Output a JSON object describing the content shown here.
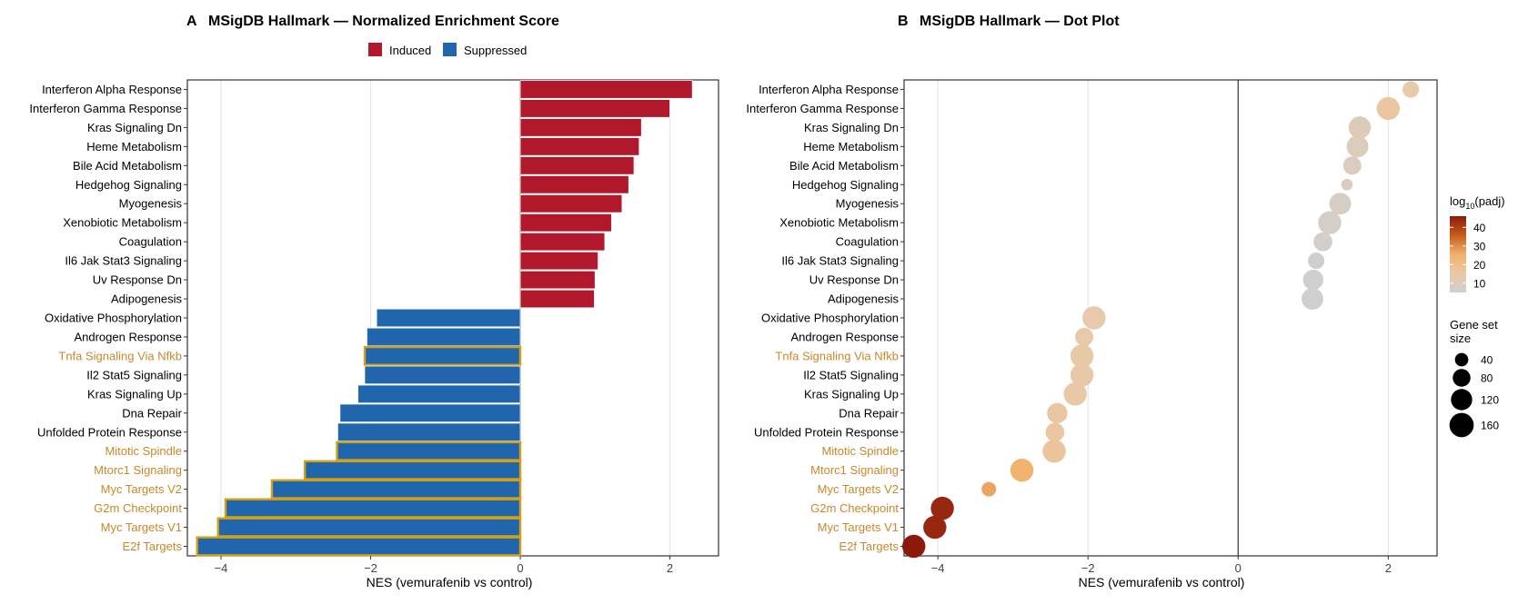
{
  "figure": {
    "panel_a": {
      "letter": "A",
      "title": "MSigDB Hallmark — Normalized Enrichment Score",
      "legend": [
        {
          "label": "Induced",
          "color": "#b2182b"
        },
        {
          "label": "Suppressed",
          "color": "#2166ac"
        }
      ]
    },
    "panel_b": {
      "letter": "B",
      "title": "MSigDB Hallmark — Dot Plot",
      "color_legend_title_main": "log",
      "color_legend_title_sub": "10",
      "color_legend_title_tail": "(padj)",
      "color_ticks": [
        "10",
        "20",
        "30",
        "40"
      ],
      "size_legend_title_line1": "Gene set",
      "size_legend_title_line2": "size",
      "size_ticks": [
        "40",
        "80",
        "120",
        "160"
      ]
    }
  },
  "chart_data": [
    {
      "type": "bar",
      "orientation": "horizontal",
      "title": "MSigDB Hallmark — Normalized Enrichment Score",
      "xlabel": "NES (vemurafenib vs control)",
      "ylabel": "",
      "xlim": [
        -4.45,
        2.65
      ],
      "xticks": [
        -4,
        -2,
        0,
        2
      ],
      "grid": "vertical major",
      "legend_position": "top",
      "colors": {
        "induced": "#b2182b",
        "suppressed": "#2166ac",
        "highlight": "#d4a017",
        "highlight_label": "#c9882a",
        "label": "#000000"
      },
      "categories": [
        "Interferon Alpha Response",
        "Interferon Gamma Response",
        "Kras Signaling Dn",
        "Heme Metabolism",
        "Bile Acid Metabolism",
        "Hedgehog Signaling",
        "Myogenesis",
        "Xenobiotic Metabolism",
        "Coagulation",
        "Il6 Jak Stat3 Signaling",
        "Uv Response Dn",
        "Adipogenesis",
        "Oxidative Phosphorylation",
        "Androgen Response",
        "Tnfa Signaling Via Nfkb",
        "Il2 Stat5 Signaling",
        "Kras Signaling Up",
        "Dna Repair",
        "Unfolded Protein Response",
        "Mitotic Spindle",
        "Mtorc1 Signaling",
        "Myc Targets V2",
        "G2m Checkpoint",
        "Myc Targets V1",
        "E2f Targets"
      ],
      "values": [
        2.3,
        2.0,
        1.62,
        1.59,
        1.52,
        1.45,
        1.36,
        1.22,
        1.13,
        1.04,
        1.0,
        0.99,
        -1.92,
        -2.05,
        -2.08,
        -2.08,
        -2.17,
        -2.41,
        -2.44,
        -2.45,
        -2.88,
        -3.32,
        -3.94,
        -4.04,
        -4.32
      ],
      "groups": [
        "Induced",
        "Induced",
        "Induced",
        "Induced",
        "Induced",
        "Induced",
        "Induced",
        "Induced",
        "Induced",
        "Induced",
        "Induced",
        "Induced",
        "Suppressed",
        "Suppressed",
        "Suppressed",
        "Suppressed",
        "Suppressed",
        "Suppressed",
        "Suppressed",
        "Suppressed",
        "Suppressed",
        "Suppressed",
        "Suppressed",
        "Suppressed",
        "Suppressed"
      ],
      "highlighted": [
        false,
        false,
        false,
        false,
        false,
        false,
        false,
        false,
        false,
        false,
        false,
        false,
        false,
        false,
        true,
        false,
        false,
        false,
        false,
        true,
        true,
        true,
        true,
        true,
        true
      ]
    },
    {
      "type": "scatter",
      "title": "MSigDB Hallmark — Dot Plot",
      "xlabel": "NES (vemurafenib vs control)",
      "ylabel": "",
      "xlim": [
        -4.45,
        2.65
      ],
      "xticks": [
        -4,
        -2,
        0,
        2
      ],
      "grid": "vertical major",
      "legend_position": "right",
      "color_scale": {
        "variable": "log10(padj)",
        "domain": [
          5,
          46
        ],
        "stops": [
          "#cfcfcf",
          "#e9c9a6",
          "#f0b36c",
          "#c65c1e",
          "#8b1a0a"
        ]
      },
      "size_scale": {
        "variable": "Gene set size",
        "domain": [
          40,
          160
        ]
      },
      "categories": [
        "Interferon Alpha Response",
        "Interferon Gamma Response",
        "Kras Signaling Dn",
        "Heme Metabolism",
        "Bile Acid Metabolism",
        "Hedgehog Signaling",
        "Myogenesis",
        "Xenobiotic Metabolism",
        "Coagulation",
        "Il6 Jak Stat3 Signaling",
        "Uv Response Dn",
        "Adipogenesis",
        "Oxidative Phosphorylation",
        "Androgen Response",
        "Tnfa Signaling Via Nfkb",
        "Il2 Stat5 Signaling",
        "Kras Signaling Up",
        "Dna Repair",
        "Unfolded Protein Response",
        "Mitotic Spindle",
        "Mtorc1 Signaling",
        "Myc Targets V2",
        "G2m Checkpoint",
        "Myc Targets V1",
        "E2f Targets"
      ],
      "x": [
        2.3,
        2.0,
        1.62,
        1.59,
        1.52,
        1.45,
        1.36,
        1.22,
        1.13,
        1.04,
        1.0,
        0.99,
        -1.92,
        -2.05,
        -2.08,
        -2.08,
        -2.17,
        -2.41,
        -2.44,
        -2.45,
        -2.88,
        -3.32,
        -3.94,
        -4.04,
        -4.32
      ],
      "log10_padj": [
        14,
        16,
        11,
        10,
        9,
        8,
        7,
        7,
        6,
        5,
        5,
        5,
        14,
        14,
        15,
        15,
        15,
        16,
        16,
        17,
        25,
        27,
        44,
        44,
        46
      ],
      "gene_set_size": [
        55,
        120,
        110,
        105,
        70,
        25,
        105,
        120,
        75,
        55,
        90,
        105,
        120,
        70,
        120,
        120,
        120,
        90,
        75,
        120,
        120,
        40,
        120,
        120,
        120
      ],
      "highlighted": [
        false,
        false,
        false,
        false,
        false,
        false,
        false,
        false,
        false,
        false,
        false,
        false,
        false,
        false,
        true,
        false,
        false,
        false,
        false,
        true,
        true,
        true,
        true,
        true,
        true
      ]
    }
  ]
}
